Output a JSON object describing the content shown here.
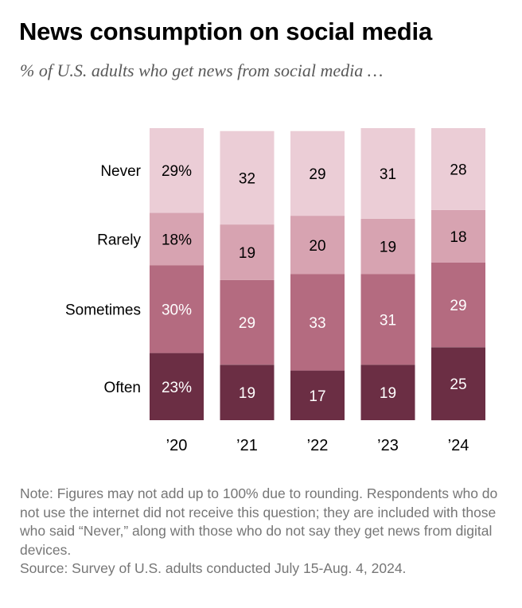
{
  "title": "News consumption on social media",
  "subtitle": "% of U.S. adults who get news from social media …",
  "note": "Note: Figures may not add up to 100% due to rounding. Respondents who do not use the internet did not receive this question; they are included with those who said “Never,” along with those who do not say they get news from digital devices.",
  "source": "Source: Survey of U.S. adults conducted July 15-Aug. 4, 2024.",
  "chart_data": {
    "type": "bar",
    "stacked": true,
    "orientation": "vertical",
    "categories": [
      "’20",
      "’21",
      "’22",
      "’23",
      "’24"
    ],
    "series": [
      {
        "name": "Often",
        "values": [
          23,
          19,
          17,
          19,
          25
        ],
        "color": "#6b2e44",
        "text_color": "#ffffff"
      },
      {
        "name": "Sometimes",
        "values": [
          30,
          29,
          33,
          31,
          29
        ],
        "color": "#b46b80",
        "text_color": "#ffffff"
      },
      {
        "name": "Rarely",
        "values": [
          18,
          19,
          20,
          19,
          18
        ],
        "color": "#d7a3b1",
        "text_color": "#000000"
      },
      {
        "name": "Never",
        "values": [
          29,
          32,
          29,
          31,
          28
        ],
        "color": "#ebcdd6",
        "text_color": "#000000"
      }
    ],
    "value_labels": {
      "Often": [
        "23%",
        "19",
        "17",
        "19",
        "25"
      ],
      "Sometimes": [
        "30%",
        "29",
        "33",
        "31",
        "29"
      ],
      "Rarely": [
        "18%",
        "19",
        "20",
        "19",
        "18"
      ],
      "Never": [
        "29%",
        "32",
        "29",
        "31",
        "28"
      ]
    },
    "legend": "row labels to the left of the first bar",
    "grid": false,
    "axis_line": false
  }
}
